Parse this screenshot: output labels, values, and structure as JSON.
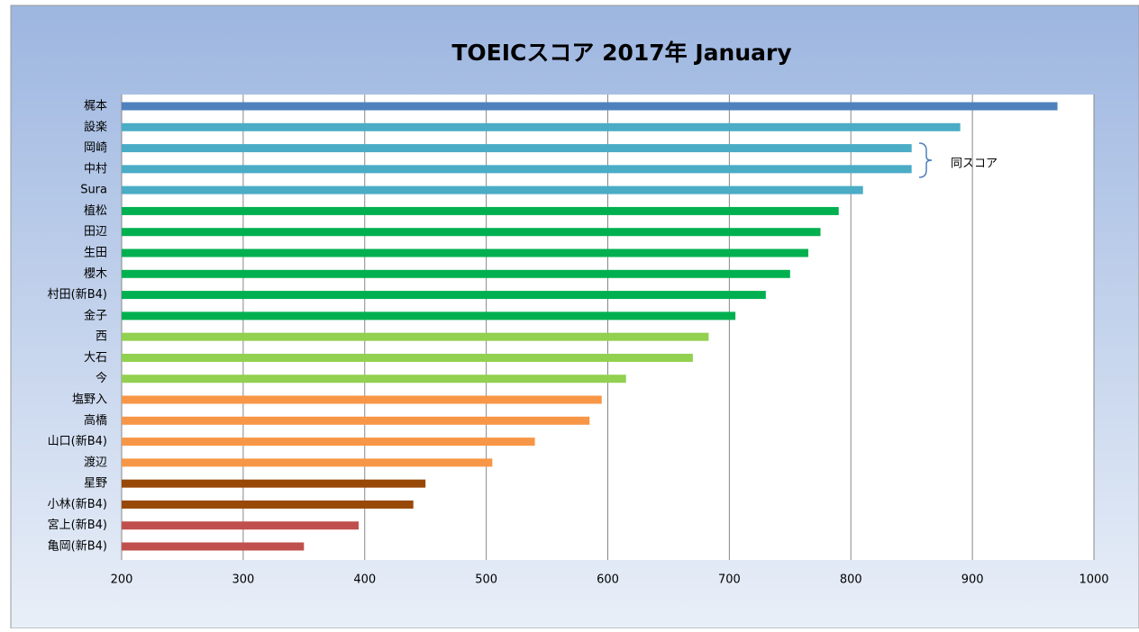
{
  "chart_data": {
    "type": "bar",
    "orientation": "horizontal",
    "title": "TOEICスコア 2017年 January",
    "categories": [
      "梶本",
      "設楽",
      "岡崎",
      "中村",
      "Sura",
      "植松",
      "田辺",
      "生田",
      "櫻木",
      "村田(新B4)",
      "金子",
      "西",
      "大石",
      "今",
      "塩野入",
      "高橋",
      "山口(新B4)",
      "渡辺",
      "星野",
      "小林(新B4)",
      "宮上(新B4)",
      "亀岡(新B4)"
    ],
    "values": [
      970,
      890,
      850,
      850,
      810,
      790,
      775,
      765,
      750,
      730,
      705,
      683,
      670,
      615,
      595,
      585,
      540,
      505,
      450,
      440,
      395,
      350
    ],
    "colors": [
      "#4f81bd",
      "#4bacc6",
      "#4bacc6",
      "#4bacc6",
      "#4bacc6",
      "#00b050",
      "#00b050",
      "#00b050",
      "#00b050",
      "#00b050",
      "#00b050",
      "#92d050",
      "#92d050",
      "#92d050",
      "#f79646",
      "#f79646",
      "#f79646",
      "#f79646",
      "#984807",
      "#984807",
      "#c0504d",
      "#c0504d"
    ],
    "xlim": [
      200,
      1000
    ],
    "xticks": [
      200,
      300,
      400,
      500,
      600,
      700,
      800,
      900,
      1000
    ],
    "grid": true,
    "annotation": "同スコア"
  }
}
